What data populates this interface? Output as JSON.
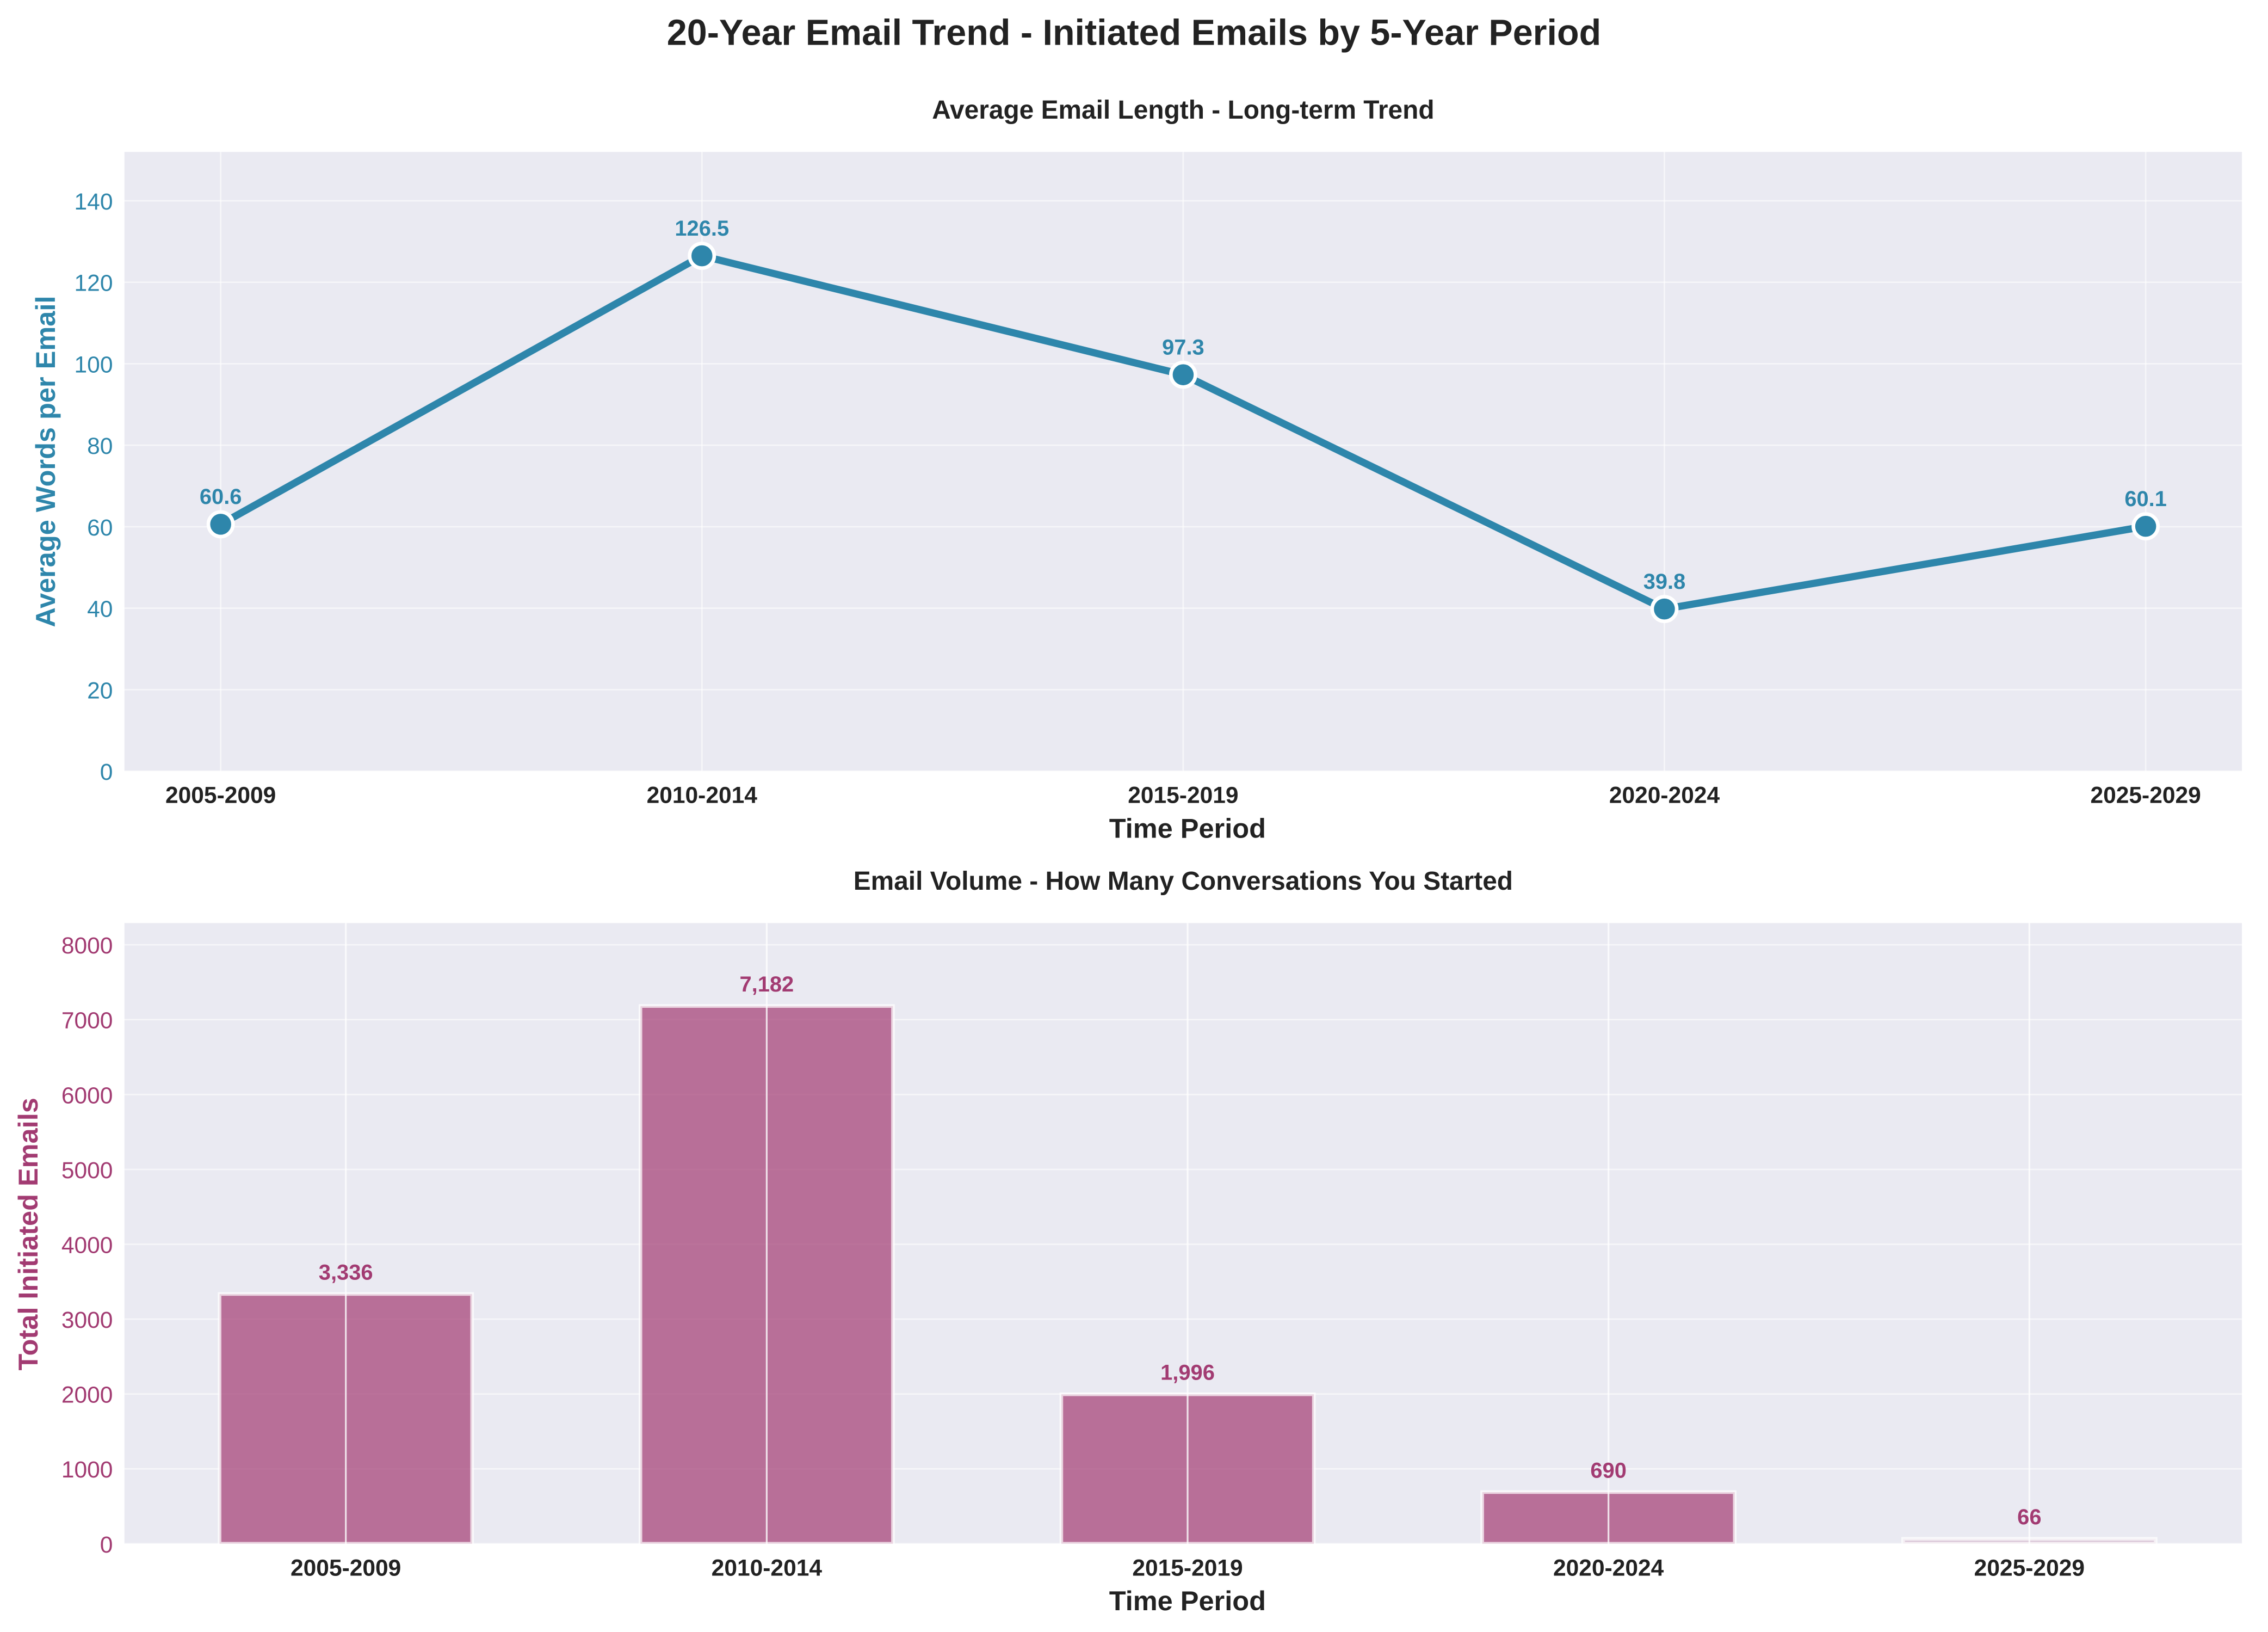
{
  "suptitle": "20-Year Email Trend - Initiated Emails by 5-Year Period",
  "chart_data": [
    {
      "type": "line",
      "title": "Average Email Length - Long-term Trend",
      "xlabel": "Time Period",
      "ylabel": "Average Words per Email",
      "categories": [
        "2005-2009",
        "2010-2014",
        "2015-2019",
        "2020-2024",
        "2025-2029"
      ],
      "values": [
        60.6,
        126.5,
        97.3,
        39.8,
        60.1
      ],
      "data_labels": [
        "60.6",
        "126.5",
        "97.3",
        "39.8",
        "60.1"
      ],
      "ylim": [
        0,
        152
      ],
      "yticks": [
        0,
        20,
        40,
        60,
        80,
        100,
        120,
        140
      ],
      "grid": true,
      "color": "#2E86AB"
    },
    {
      "type": "bar",
      "title": "Email Volume - How Many Conversations You Started",
      "xlabel": "Time Period",
      "ylabel": "Total Initiated Emails",
      "categories": [
        "2005-2009",
        "2010-2014",
        "2015-2019",
        "2020-2024",
        "2025-2029"
      ],
      "values": [
        3336,
        7182,
        1996,
        690,
        66
      ],
      "data_labels": [
        "3,336",
        "7,182",
        "1,996",
        "690",
        "66"
      ],
      "ylim": [
        0,
        8290
      ],
      "yticks": [
        0,
        1000,
        2000,
        3000,
        4000,
        5000,
        6000,
        7000,
        8000
      ],
      "grid": true,
      "color": "#A23B72"
    }
  ]
}
